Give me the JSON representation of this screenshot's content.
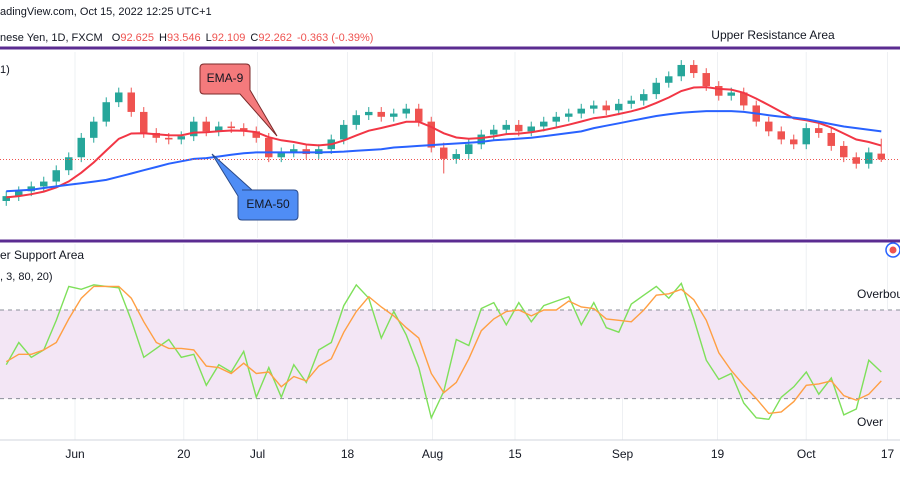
{
  "chart_data": [
    {
      "type": "candlestick",
      "title": "adingView.com, Oct 15, 2022 12:25 UTC+1",
      "subtitle": "nese Yen, 1D, FXCM",
      "ohlc": [
        {
          "label": "O",
          "value": 92.625
        },
        {
          "label": "H",
          "value": 93.546
        },
        {
          "label": "L",
          "value": 92.109
        },
        {
          "label": "C",
          "value": 92.262
        }
      ],
      "change": "-0.363 (-0.39%)",
      "indicator_label": "1)",
      "annotation": "Upper Resistance Area",
      "up_color": "#26a69a",
      "down_color": "#ef5350",
      "open": [
        89.7,
        90.0,
        90.3,
        90.6,
        90.9,
        91.6,
        92.4,
        93.6,
        94.6,
        95.8,
        96.4,
        95.2,
        93.9,
        93.6,
        93.5,
        93.7,
        94.6,
        94.0,
        94.3,
        94.2,
        94.0,
        93.6,
        92.4,
        92.7,
        92.9,
        92.6,
        92.9,
        93.5,
        94.4,
        95.0,
        95.2,
        94.9,
        95.1,
        95.4,
        94.6,
        93.0,
        92.3,
        92.6,
        93.2,
        93.8,
        94.1,
        94.4,
        94.0,
        94.3,
        94.6,
        94.9,
        95.1,
        95.4,
        95.6,
        95.3,
        95.7,
        95.9,
        96.3,
        97.0,
        97.4,
        98.1,
        97.6,
        96.8,
        96.2,
        96.4,
        95.6,
        94.6,
        94.0,
        93.5,
        93.2,
        94.2,
        93.9,
        93.1,
        92.4,
        92.0,
        92.625
      ],
      "high": [
        90.3,
        90.6,
        90.9,
        91.2,
        91.9,
        92.7,
        93.9,
        94.9,
        96.1,
        96.7,
        96.7,
        95.5,
        94.2,
        93.9,
        94.0,
        94.9,
        94.9,
        94.6,
        94.6,
        94.5,
        94.3,
        93.9,
        93.0,
        93.2,
        93.2,
        93.2,
        93.8,
        94.7,
        95.3,
        95.5,
        95.5,
        95.4,
        95.7,
        95.7,
        94.9,
        93.3,
        92.9,
        93.5,
        94.1,
        94.4,
        94.7,
        94.7,
        94.6,
        94.9,
        95.2,
        95.4,
        95.7,
        95.9,
        95.9,
        96.0,
        96.2,
        96.6,
        97.3,
        97.7,
        98.4,
        98.4,
        97.9,
        97.1,
        96.7,
        96.7,
        95.9,
        94.9,
        94.3,
        93.8,
        94.5,
        94.5,
        94.2,
        93.4,
        92.7,
        93.0,
        93.546
      ],
      "low": [
        89.4,
        89.7,
        90.0,
        90.3,
        90.6,
        91.3,
        92.1,
        93.3,
        94.3,
        95.5,
        94.9,
        93.6,
        93.3,
        93.2,
        93.2,
        93.4,
        93.7,
        93.7,
        93.9,
        93.7,
        93.3,
        92.1,
        92.1,
        92.4,
        92.3,
        92.3,
        92.6,
        93.2,
        94.1,
        94.7,
        94.6,
        94.6,
        94.8,
        94.3,
        92.7,
        91.4,
        92.0,
        92.3,
        92.9,
        93.5,
        93.8,
        93.7,
        93.7,
        94.0,
        94.3,
        94.6,
        94.8,
        95.1,
        95.0,
        95.0,
        95.4,
        95.6,
        96.0,
        96.7,
        97.1,
        97.3,
        96.5,
        95.9,
        95.9,
        95.3,
        94.3,
        93.7,
        93.2,
        92.9,
        92.9,
        93.6,
        92.8,
        92.1,
        91.7,
        91.7,
        92.109
      ],
      "close": [
        90.0,
        90.3,
        90.6,
        90.9,
        91.6,
        92.4,
        93.6,
        94.6,
        95.8,
        96.4,
        95.2,
        93.9,
        93.6,
        93.5,
        93.7,
        94.6,
        94.0,
        94.3,
        94.2,
        94.0,
        93.6,
        92.4,
        92.7,
        92.9,
        92.6,
        92.9,
        93.5,
        94.4,
        95.0,
        95.2,
        94.9,
        95.1,
        95.4,
        94.6,
        93.0,
        92.3,
        92.6,
        93.2,
        93.8,
        94.1,
        94.4,
        94.0,
        94.3,
        94.6,
        94.9,
        95.1,
        95.4,
        95.6,
        95.3,
        95.7,
        95.9,
        96.3,
        97.0,
        97.4,
        98.1,
        97.6,
        96.8,
        96.2,
        96.4,
        95.6,
        94.6,
        94.0,
        93.5,
        93.2,
        94.2,
        93.9,
        93.1,
        92.4,
        92.0,
        92.7,
        92.262
      ],
      "series": [
        {
          "name": "EMA-9",
          "color": "#f23645",
          "values": [
            89.92,
            90.0,
            90.12,
            90.28,
            90.54,
            90.91,
            91.45,
            92.08,
            92.82,
            93.54,
            93.87,
            93.88,
            93.82,
            93.76,
            93.75,
            93.92,
            93.94,
            94.01,
            94.05,
            94.04,
            93.95,
            93.64,
            93.45,
            93.34,
            93.19,
            93.13,
            93.2,
            93.44,
            93.75,
            94.04,
            94.21,
            94.39,
            94.59,
            94.59,
            94.27,
            93.88,
            93.62,
            93.54,
            93.59,
            93.69,
            93.83,
            93.86,
            93.95,
            94.08,
            94.24,
            94.41,
            94.61,
            94.81,
            94.91,
            95.07,
            95.24,
            95.45,
            95.76,
            96.09,
            96.49,
            96.71,
            96.73,
            96.62,
            96.58,
            96.38,
            96.02,
            95.62,
            95.2,
            94.8,
            94.68,
            94.52,
            94.24,
            93.87,
            93.5,
            93.34,
            93.12
          ]
        },
        {
          "name": "EMA-50",
          "color": "#2962ff",
          "values": [
            90.3,
            90.35,
            90.4,
            90.5,
            90.6,
            90.7,
            90.8,
            90.9,
            91.0,
            91.2,
            91.4,
            91.6,
            91.8,
            92.0,
            92.15,
            92.3,
            92.35,
            92.45,
            92.55,
            92.65,
            92.7,
            92.7,
            92.7,
            92.7,
            92.7,
            92.7,
            92.72,
            92.75,
            92.8,
            92.85,
            92.9,
            93.0,
            93.05,
            93.1,
            93.15,
            93.2,
            93.25,
            93.3,
            93.35,
            93.45,
            93.5,
            93.55,
            93.6,
            93.7,
            93.8,
            93.9,
            94.0,
            94.2,
            94.35,
            94.5,
            94.65,
            94.8,
            94.95,
            95.05,
            95.15,
            95.2,
            95.25,
            95.25,
            95.25,
            95.2,
            95.1,
            95.0,
            94.9,
            94.85,
            94.75,
            94.6,
            94.45,
            94.3,
            94.2,
            94.1,
            94.0
          ]
        }
      ],
      "xlim": [
        -0.5,
        71.5
      ],
      "ylim": [
        87.6,
        98.9
      ]
    },
    {
      "type": "line",
      "indicator_label": ", 3, 80, 20)",
      "annotation": "er Support Area",
      "levels": [
        {
          "value": 80,
          "label": "Overbou"
        },
        {
          "value": 20,
          "label": "Over"
        }
      ],
      "band_color": "#f3e6f5",
      "series": [
        {
          "color": "#7ee05a",
          "values": [
            43,
            58,
            48,
            53,
            73,
            96,
            94,
            97,
            96,
            95,
            73,
            48,
            54,
            60,
            48,
            50,
            29,
            43,
            38,
            52,
            21,
            41,
            21,
            43,
            31,
            53,
            58,
            83,
            97,
            88,
            61,
            79,
            63,
            41,
            7,
            25,
            60,
            56,
            81,
            85,
            70,
            85,
            72,
            83,
            86,
            89,
            70,
            85,
            68,
            65,
            84,
            90,
            96,
            88,
            98,
            74,
            46,
            33,
            37,
            17,
            7,
            6,
            21,
            28,
            38,
            23,
            34,
            9,
            13,
            46,
            38
          ]
        },
        {
          "color": "#ff9f43",
          "values": [
            45,
            50,
            50,
            53,
            58,
            74,
            88,
            96,
            96,
            96,
            88,
            72,
            58,
            54,
            54,
            53,
            42,
            41,
            37,
            44,
            37,
            38,
            28,
            35,
            32,
            42,
            47,
            65,
            79,
            89,
            82,
            76,
            68,
            61,
            37,
            24,
            31,
            47,
            66,
            74,
            79,
            80,
            76,
            80,
            80,
            86,
            82,
            81,
            74,
            73,
            72,
            80,
            90,
            91,
            94,
            87,
            73,
            51,
            39,
            29,
            20,
            10,
            11,
            18,
            29,
            30,
            32,
            22,
            19,
            23,
            32
          ]
        }
      ],
      "xlim": [
        -0.5,
        71.5
      ],
      "xticks": [
        {
          "value": 5.5,
          "label": "Jun"
        },
        {
          "value": 14.2,
          "label": "20"
        },
        {
          "value": 20.1,
          "label": "Jul"
        },
        {
          "value": 27.3,
          "label": "18"
        },
        {
          "value": 34.1,
          "label": "Aug"
        },
        {
          "value": 40.7,
          "label": "15"
        },
        {
          "value": 49.3,
          "label": "Sep"
        },
        {
          "value": 56.9,
          "label": "19"
        },
        {
          "value": 64.0,
          "label": "Oct"
        },
        {
          "value": 70.5,
          "label": "17"
        }
      ],
      "ylim": [
        -8,
        124
      ]
    }
  ]
}
